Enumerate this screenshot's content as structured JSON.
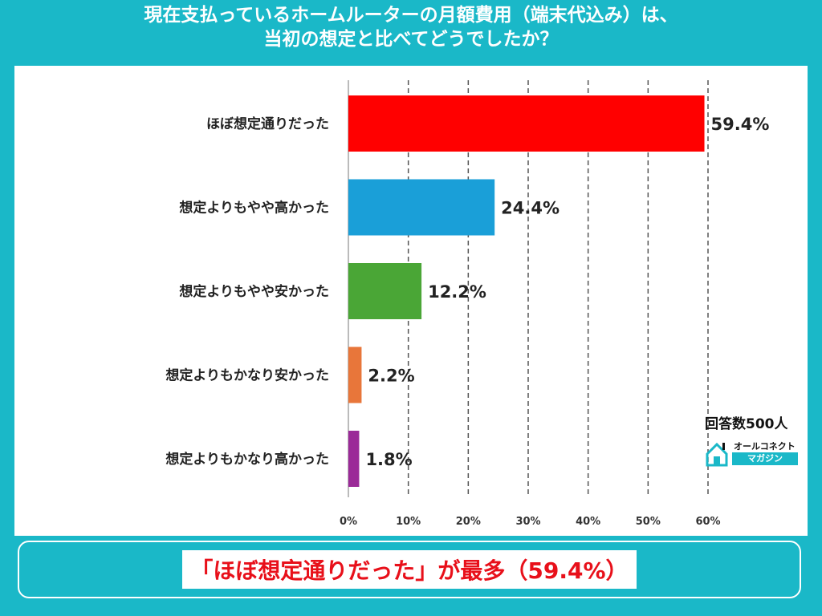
{
  "title_line1": "現在支払っているホームルーターの月額費用（端末代込み）は、",
  "title_line2": "当初の想定と比べてどうでしたか？",
  "summary": "「ほぼ想定通りだった」が最多（59.4%）",
  "respondents": "回答数500人",
  "logo": {
    "top": "オールコネクト",
    "bottom": "マガジン",
    "icon": "house-icon"
  },
  "chart_data": {
    "type": "bar",
    "orientation": "horizontal",
    "categories": [
      "ほぼ想定通りだった",
      "想定よりもやや高かった",
      "想定よりもやや安かった",
      "想定よりもかなり安かった",
      "想定よりもかなり高かった"
    ],
    "values": [
      59.4,
      24.4,
      12.2,
      2.2,
      1.8
    ],
    "value_labels": [
      "59.4%",
      "24.4%",
      "12.2%",
      "2.2%",
      "1.8%"
    ],
    "colors": [
      "#ff0000",
      "#1a9fd8",
      "#4aa636",
      "#e8763a",
      "#9b2a98"
    ],
    "xlim": [
      0,
      60
    ],
    "ticks": [
      "0%",
      "10%",
      "20%",
      "30%",
      "40%",
      "50%",
      "60%"
    ],
    "grid": "vertical dashed"
  }
}
